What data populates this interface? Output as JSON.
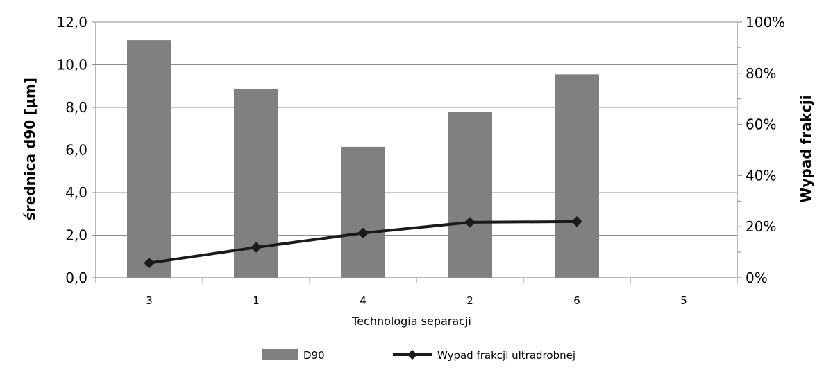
{
  "chart_data": {
    "type": "bar",
    "categories": [
      "3",
      "1",
      "4",
      "2",
      "6",
      "5"
    ],
    "xlabel": "Technologia separacji",
    "ylabel": "średnica d90 [µm]",
    "y2label": "Wypad frakcji",
    "ylim": [
      0,
      12
    ],
    "y2lim": [
      0,
      1
    ],
    "yticks": [
      "0,0",
      "2,0",
      "4,0",
      "6,0",
      "8,0",
      "10,0",
      "12,0"
    ],
    "y2ticks": [
      "0%",
      "20%",
      "40%",
      "60%",
      "80%",
      "100%"
    ],
    "grid": true,
    "legend_position": "bottom",
    "series": [
      {
        "name": "D90",
        "kind": "bar",
        "axis": "left",
        "color": "#808080",
        "values": [
          11.15,
          8.85,
          6.15,
          7.8,
          9.55,
          null
        ]
      },
      {
        "name": "Wypad frakcji ultradrobnej",
        "kind": "line",
        "axis": "right",
        "color": "#1a1a1a",
        "marker": "diamond",
        "values": [
          0.058,
          0.119,
          0.175,
          0.217,
          0.22,
          null
        ]
      }
    ]
  }
}
